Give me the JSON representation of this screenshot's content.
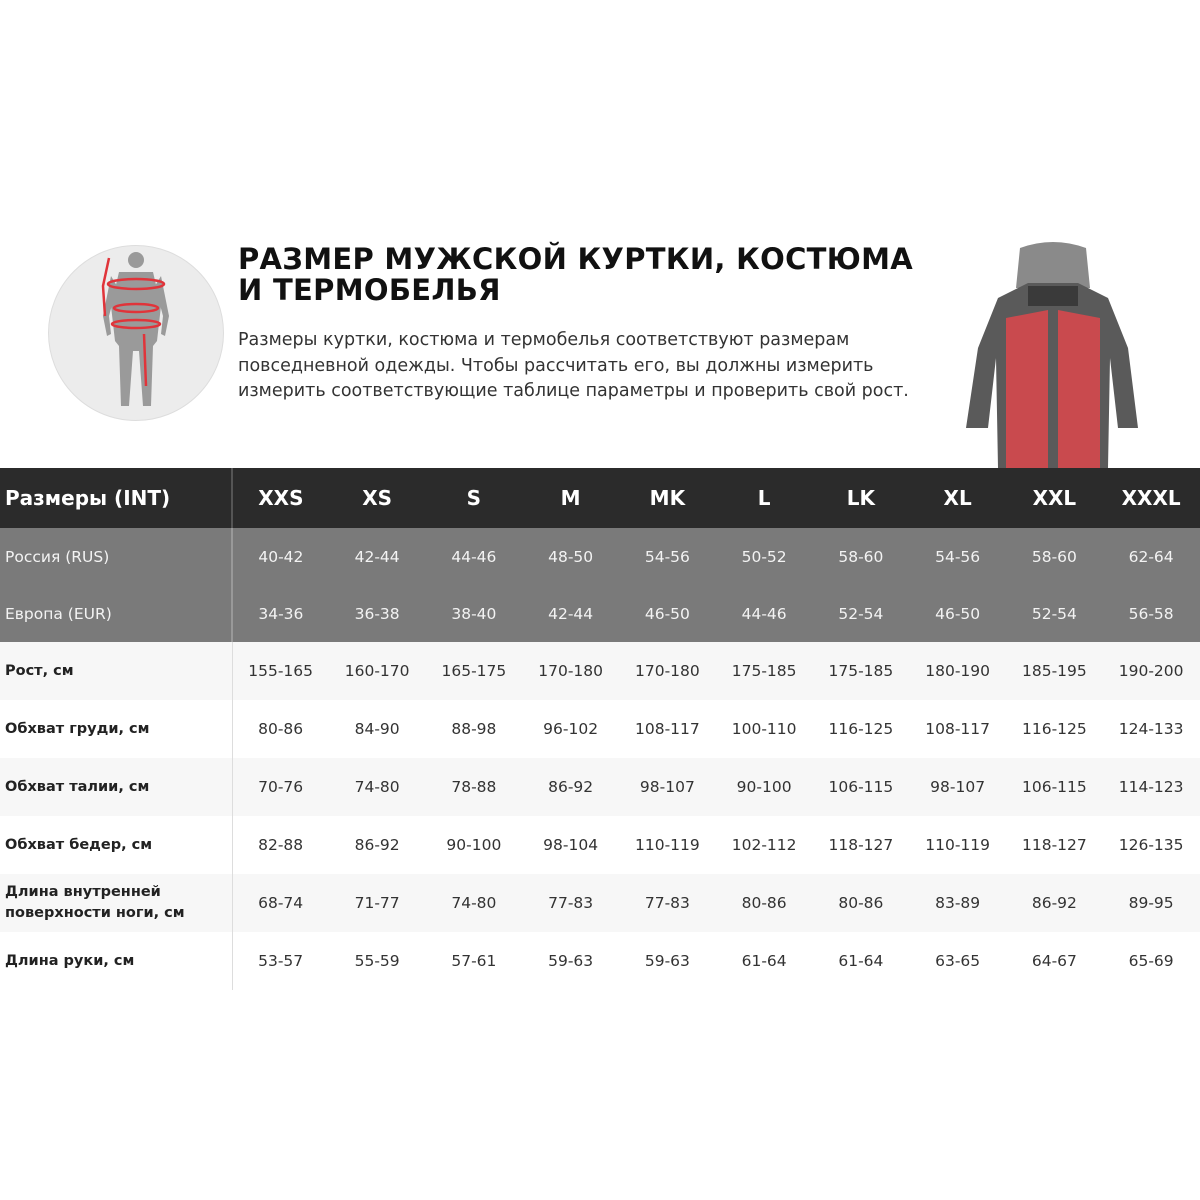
{
  "header": {
    "title": "РАЗМЕР МУЖСКОЙ КУРТКИ, КОСТЮМА И ТЕРМОБЕЛЬЯ",
    "description": "Размеры куртки, костюма и термобелья соответствуют размерам повседневной одежды. Чтобы рассчитать его, вы должны измерить измерить соответствующие таблице параметры и проверить свой рост."
  },
  "colors": {
    "header_bg": "#2b2b2b",
    "sub_bg": "#7a7a7a",
    "accent": "#e0343a"
  },
  "table": {
    "corner": "Размеры (INT)",
    "sizes": [
      "XXS",
      "XS",
      "S",
      "M",
      "MK",
      "L",
      "LK",
      "XL",
      "XXL",
      "XXXL"
    ],
    "gray_rows": [
      {
        "label": "Россия (RUS)",
        "values": [
          "40-42",
          "42-44",
          "44-46",
          "48-50",
          "54-56",
          "50-52",
          "58-60",
          "54-56",
          "58-60",
          "62-64"
        ]
      },
      {
        "label": "Европа (EUR)",
        "values": [
          "34-36",
          "36-38",
          "38-40",
          "42-44",
          "46-50",
          "44-46",
          "52-54",
          "46-50",
          "52-54",
          "56-58"
        ]
      }
    ],
    "rows": [
      {
        "label": "Рост, см",
        "values": [
          "155-165",
          "160-170",
          "165-175",
          "170-180",
          "170-180",
          "175-185",
          "175-185",
          "180-190",
          "185-195",
          "190-200"
        ]
      },
      {
        "label": "Обхват груди, см",
        "values": [
          "80-86",
          "84-90",
          "88-98",
          "96-102",
          "108-117",
          "100-110",
          "116-125",
          "108-117",
          "116-125",
          "124-133"
        ]
      },
      {
        "label": "Обхват талии, см",
        "values": [
          "70-76",
          "74-80",
          "78-88",
          "86-92",
          "98-107",
          "90-100",
          "106-115",
          "98-107",
          "106-115",
          "114-123"
        ]
      },
      {
        "label": "Обхват бедер, см",
        "values": [
          "82-88",
          "86-92",
          "90-100",
          "98-104",
          "110-119",
          "102-112",
          "118-127",
          "110-119",
          "118-127",
          "126-135"
        ]
      },
      {
        "label": "Длина внутренней поверхности ноги, см",
        "values": [
          "68-74",
          "71-77",
          "74-80",
          "77-83",
          "77-83",
          "80-86",
          "80-86",
          "83-89",
          "86-92",
          "89-95"
        ]
      },
      {
        "label": "Длина руки, см",
        "values": [
          "53-57",
          "55-59",
          "57-61",
          "59-63",
          "59-63",
          "61-64",
          "61-64",
          "63-65",
          "64-67",
          "65-69"
        ]
      }
    ]
  }
}
